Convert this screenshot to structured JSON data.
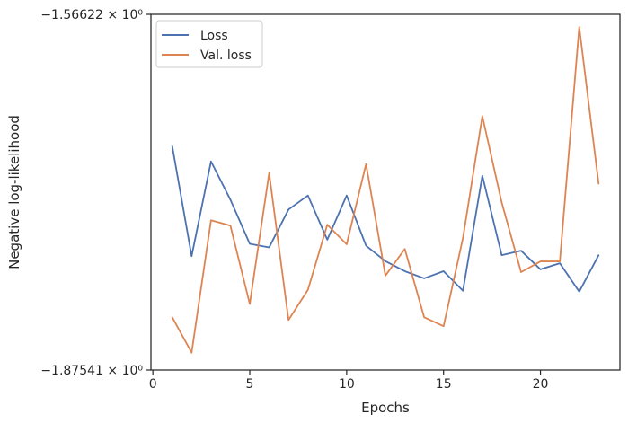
{
  "chart_data": {
    "type": "line",
    "xlabel": "Epochs",
    "ylabel": "Negative log-likelihood",
    "xlim": [
      -0.1,
      24.1
    ],
    "ylim": [
      -1.87541,
      -1.56622
    ],
    "y_scale": "symlog-like (labels in scientific notation)",
    "x_ticks": [
      0,
      5,
      10,
      15,
      20
    ],
    "x_tick_labels": [
      "0",
      "5",
      "10",
      "15",
      "20"
    ],
    "y_ticks": [
      -1.56622,
      -1.87541
    ],
    "y_tick_labels": [
      "−1.56622 × 10⁰",
      "−1.87541 × 10⁰"
    ],
    "grid": false,
    "legend_position": "top-left",
    "x": [
      1,
      2,
      3,
      4,
      5,
      6,
      7,
      8,
      9,
      10,
      11,
      12,
      13,
      14,
      15,
      16,
      17,
      18,
      19,
      20,
      21,
      22,
      23
    ],
    "series": [
      {
        "name": "Loss",
        "color": "#4c72b0",
        "values": [
          -1.6809,
          -1.7764,
          -1.6941,
          -1.7273,
          -1.7657,
          -1.7688,
          -1.7359,
          -1.7237,
          -1.7621,
          -1.7237,
          -1.7673,
          -1.7808,
          -1.7895,
          -1.7957,
          -1.7895,
          -1.8065,
          -1.7065,
          -1.7756,
          -1.7717,
          -1.7879,
          -1.7826,
          -1.8073,
          -1.7756
        ]
      },
      {
        "name": "Val. loss",
        "color": "#dd8452",
        "values": [
          -1.8296,
          -1.8603,
          -1.7452,
          -1.7499,
          -1.818,
          -1.7041,
          -1.8319,
          -1.8057,
          -1.7491,
          -1.7661,
          -1.6964,
          -1.7934,
          -1.7702,
          -1.8296,
          -1.8373,
          -1.7607,
          -1.6547,
          -1.7298,
          -1.7903,
          -1.781,
          -1.781,
          -1.5771,
          -1.7134
        ]
      }
    ]
  }
}
